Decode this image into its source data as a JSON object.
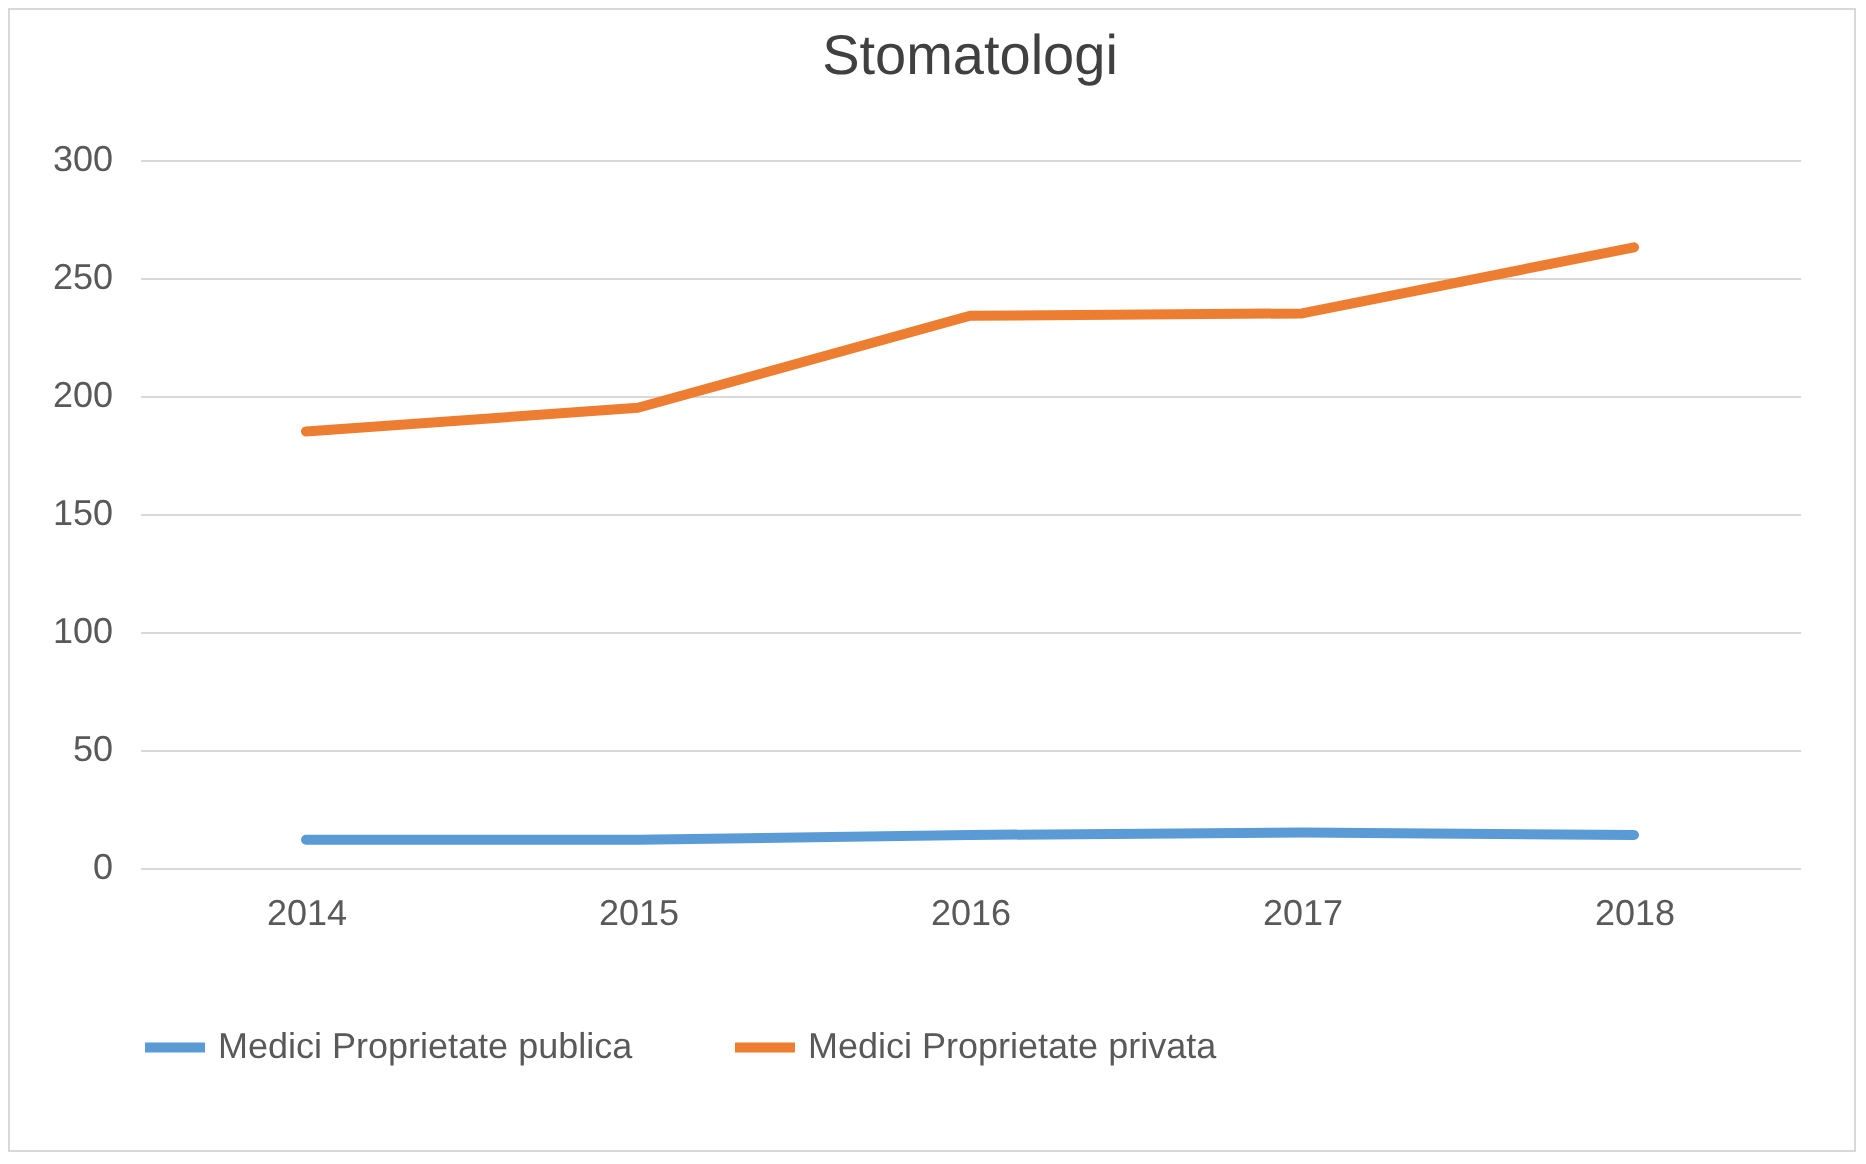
{
  "chart_data": {
    "type": "line",
    "title": "Stomatologi",
    "categories": [
      "2014",
      "2015",
      "2016",
      "2017",
      "2018"
    ],
    "series": [
      {
        "name": "Medici Proprietate publica",
        "color": "#5b9bd5",
        "values": [
          12,
          12,
          14,
          15,
          14
        ]
      },
      {
        "name": "Medici Proprietate privata",
        "color": "#ed7d31",
        "values": [
          185,
          195,
          234,
          235,
          263
        ]
      }
    ],
    "ylim": [
      0,
      300
    ],
    "yticks": [
      0,
      50,
      100,
      150,
      200,
      250,
      300
    ],
    "grid": "y",
    "legend": "bottom",
    "marker": "none"
  }
}
